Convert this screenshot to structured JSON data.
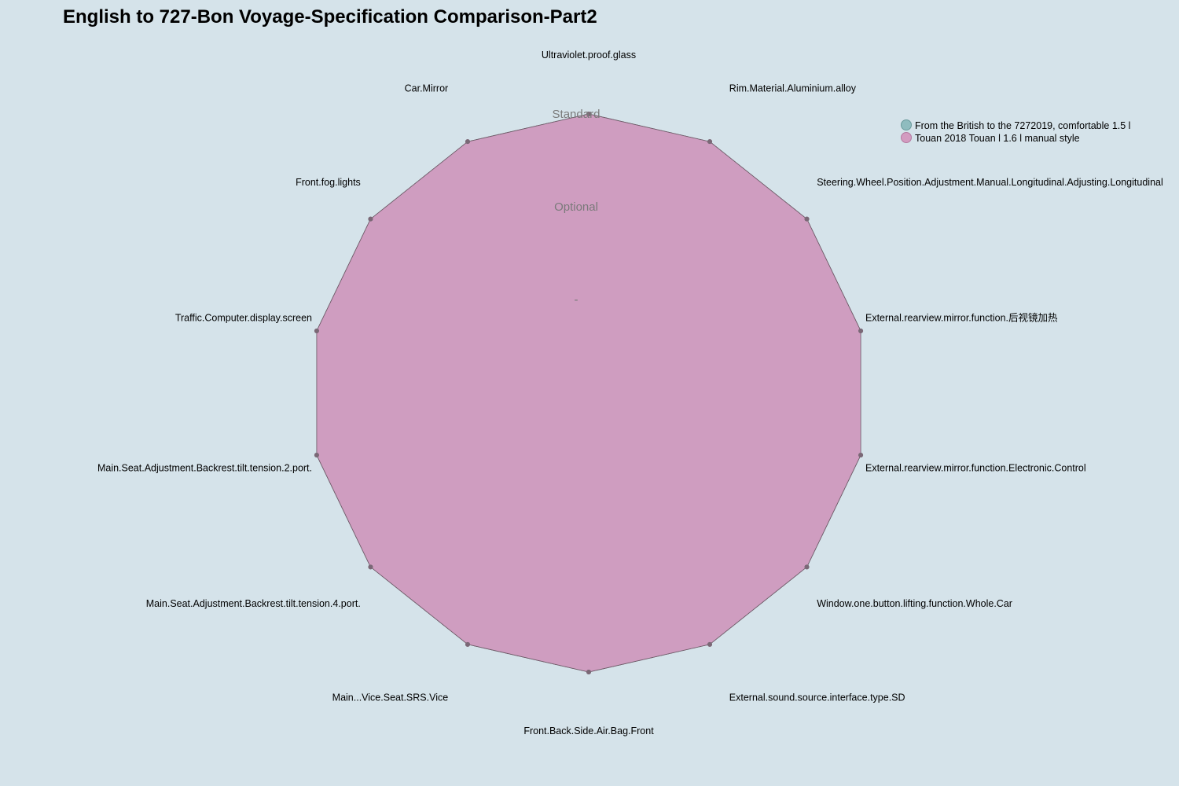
{
  "chart_data": {
    "type": "radar",
    "title": "English to 727-Bon Voyage-Specification Comparison-Part2",
    "axes": [
      "Ultraviolet.proof.glass",
      "Rim.Material.Aluminium.alloy",
      "Steering.Wheel.Position.Adjustment.Manual.Longitudinal.Adjusting.Longitudinal",
      "External.rearview.mirror.function.后视镜加热",
      "External.rearview.mirror.function.Electronic.Control",
      "Window.one.button.lifting.function.Whole.Car",
      "External.sound.source.interface.type.SD",
      "Front.Back.Side.Air.Bag.Front",
      "Main...Vice.Seat.SRS.Vice",
      "Main.Seat.Adjustment.Backrest.tilt.tension.4.port.",
      "Main.Seat.Adjustment.Backrest.tilt.tension.2.port.",
      "Traffic.Computer.display.screen",
      "Front.fog.lights",
      "Car.Mirror"
    ],
    "levels": [
      "-",
      "Optional",
      "Standard"
    ],
    "series": [
      {
        "name": "From the British to the 7272019, comfortable 1.5 l",
        "color": "#8fbcbf",
        "values": [
          3,
          3,
          3,
          3,
          3,
          3,
          3,
          3,
          3,
          3,
          3,
          3,
          3,
          3
        ]
      },
      {
        "name": "Touan 2018 Touan l 1.6 l manual style",
        "color": "#d39bc0",
        "values": [
          3,
          3,
          3,
          3,
          3,
          3,
          3,
          3,
          3,
          3,
          3,
          3,
          3,
          3
        ]
      }
    ],
    "legend_position": "top-right"
  }
}
